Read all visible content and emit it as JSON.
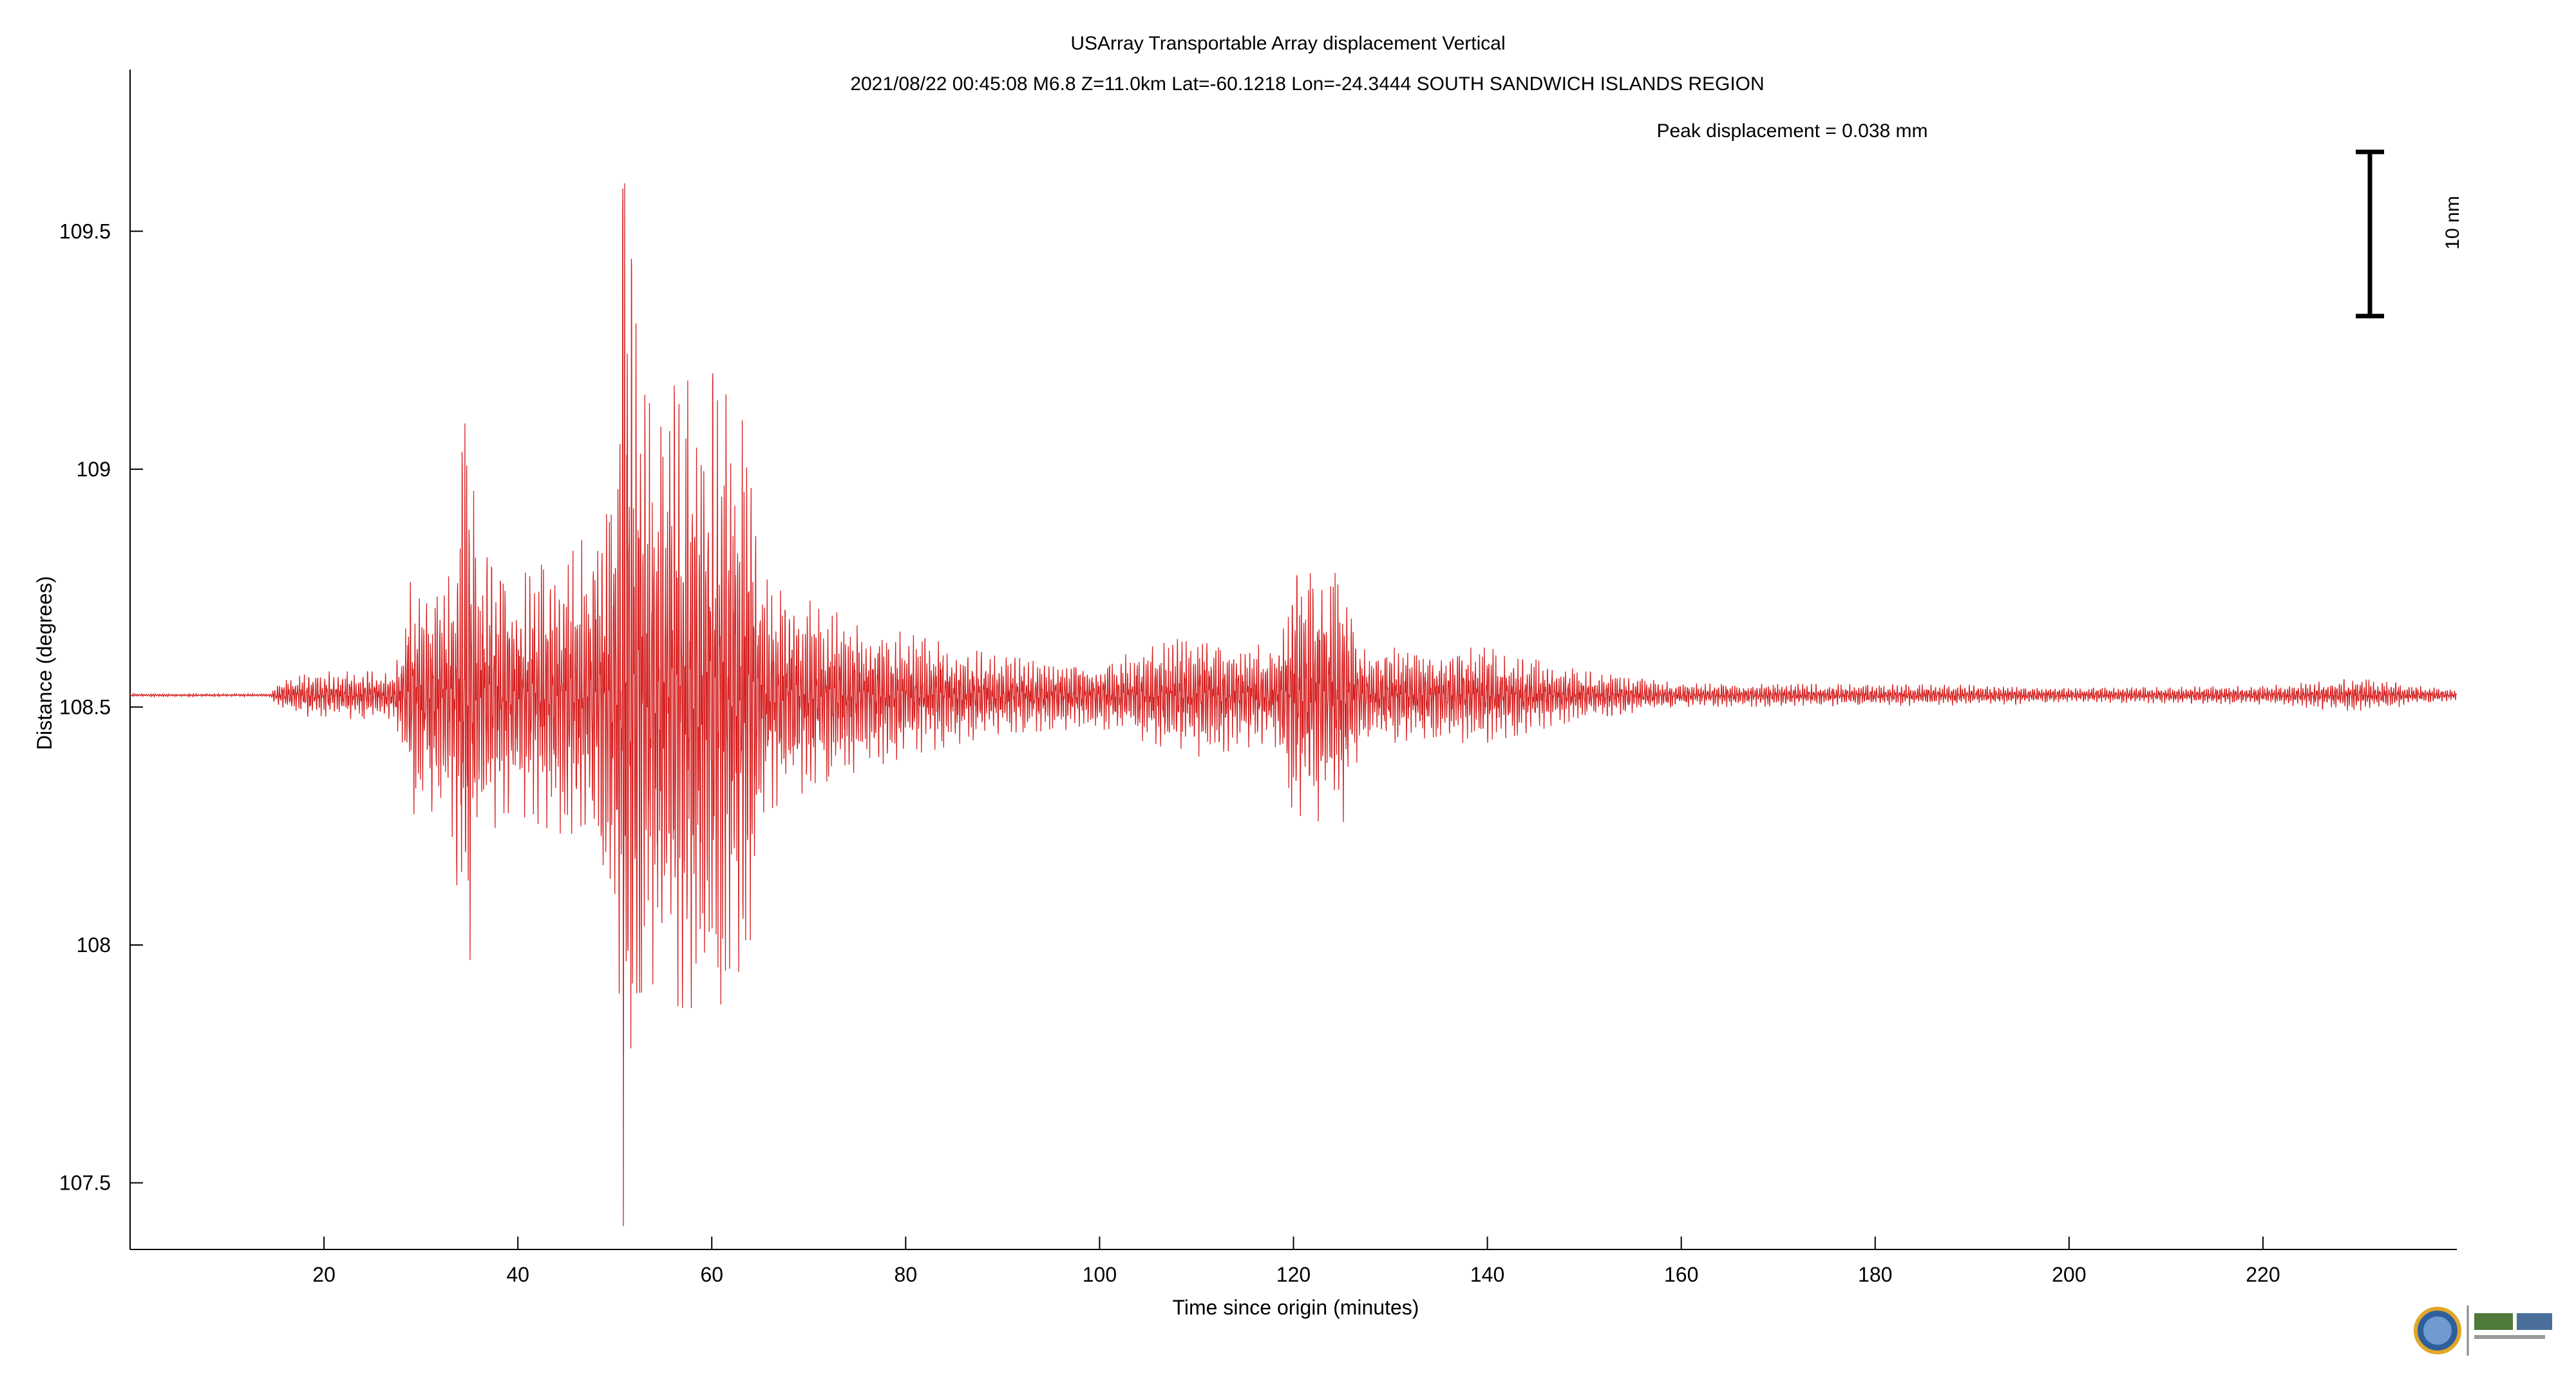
{
  "chart_data": {
    "type": "line",
    "title": "USArray Transportable Array displacement   Vertical",
    "subtitle": "2021/08/22  00:45:08  M6.8  Z=11.0km  Lat=-60.1218 Lon=-24.3444  SOUTH SANDWICH ISLANDS REGION",
    "annotation": "Peak displacement = 0.038 mm",
    "scale_bar_label": "10 nm",
    "xlabel": "Time since origin (minutes)",
    "ylabel": "Distance (degrees)",
    "xlim": [
      0,
      240
    ],
    "ylim": [
      107.36,
      109.84
    ],
    "xticks": [
      20,
      40,
      60,
      80,
      100,
      120,
      140,
      160,
      180,
      200,
      220
    ],
    "yticks": [
      107.5,
      108,
      108.5,
      109,
      109.5
    ],
    "grid": false,
    "series": [
      {
        "color": "#d62020",
        "baseline": 108.525,
        "envelope": [
          {
            "t": 0,
            "amp": 0.003
          },
          {
            "t": 14.5,
            "amp": 0.003
          },
          {
            "t": 15,
            "amp": 0.025
          },
          {
            "t": 19,
            "amp": 0.05
          },
          {
            "t": 27,
            "amp": 0.05
          },
          {
            "t": 28,
            "amp": 0.12
          },
          {
            "t": 29,
            "amp": 0.25
          },
          {
            "t": 33,
            "amp": 0.25
          },
          {
            "t": 34.8,
            "amp": 0.63
          },
          {
            "t": 36,
            "amp": 0.3
          },
          {
            "t": 40,
            "amp": 0.25
          },
          {
            "t": 45,
            "amp": 0.3
          },
          {
            "t": 48,
            "amp": 0.35
          },
          {
            "t": 50,
            "amp": 0.5
          },
          {
            "t": 51,
            "amp": 1.2
          },
          {
            "t": 52,
            "amp": 0.8
          },
          {
            "t": 54,
            "amp": 0.6
          },
          {
            "t": 56,
            "amp": 0.65
          },
          {
            "t": 60,
            "amp": 0.68
          },
          {
            "t": 64,
            "amp": 0.55
          },
          {
            "t": 65,
            "amp": 0.25
          },
          {
            "t": 72,
            "amp": 0.18
          },
          {
            "t": 80,
            "amp": 0.13
          },
          {
            "t": 90,
            "amp": 0.08
          },
          {
            "t": 100,
            "amp": 0.07
          },
          {
            "t": 110,
            "amp": 0.13
          },
          {
            "t": 118,
            "amp": 0.1
          },
          {
            "t": 120,
            "amp": 0.25
          },
          {
            "t": 125,
            "amp": 0.28
          },
          {
            "t": 127,
            "amp": 0.1
          },
          {
            "t": 140,
            "amp": 0.1
          },
          {
            "t": 150,
            "amp": 0.05
          },
          {
            "t": 160,
            "amp": 0.025
          },
          {
            "t": 190,
            "amp": 0.022
          },
          {
            "t": 200,
            "amp": 0.015
          },
          {
            "t": 220,
            "amp": 0.02
          },
          {
            "t": 230,
            "amp": 0.035
          },
          {
            "t": 240,
            "amp": 0.01
          }
        ]
      }
    ]
  }
}
